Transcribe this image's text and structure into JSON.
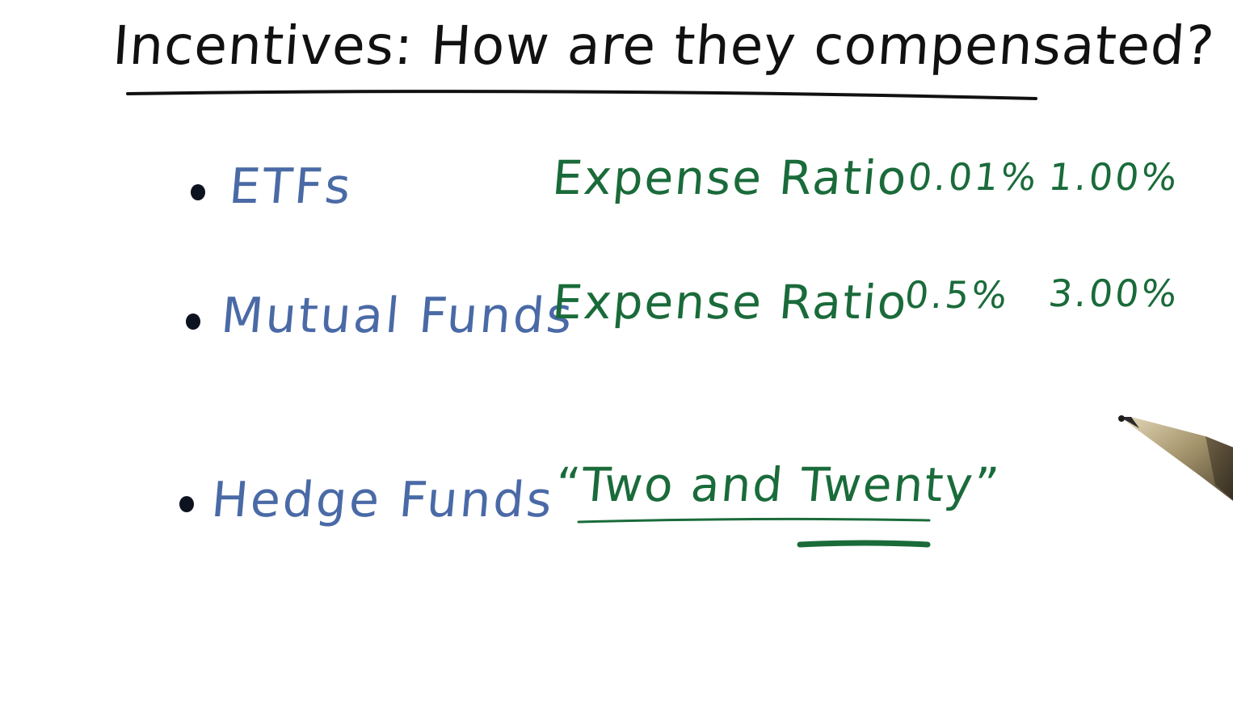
{
  "title": "Incentives: How are they compensated?",
  "items": [
    {
      "fund": "ETFs",
      "metric": "Expense Ratio",
      "low": "0.01%",
      "high": "1.00%"
    },
    {
      "fund": "Mutual Funds",
      "metric": "Expense Ratio",
      "low": "0.5%",
      "high": "3.00%"
    },
    {
      "fund": "Hedge Funds",
      "metric": "“Two and Twenty”"
    }
  ],
  "colors": {
    "title": "#111111",
    "fund": "#4a6aa6",
    "metric": "#1a6b3a",
    "bullet": "#0d1220"
  }
}
